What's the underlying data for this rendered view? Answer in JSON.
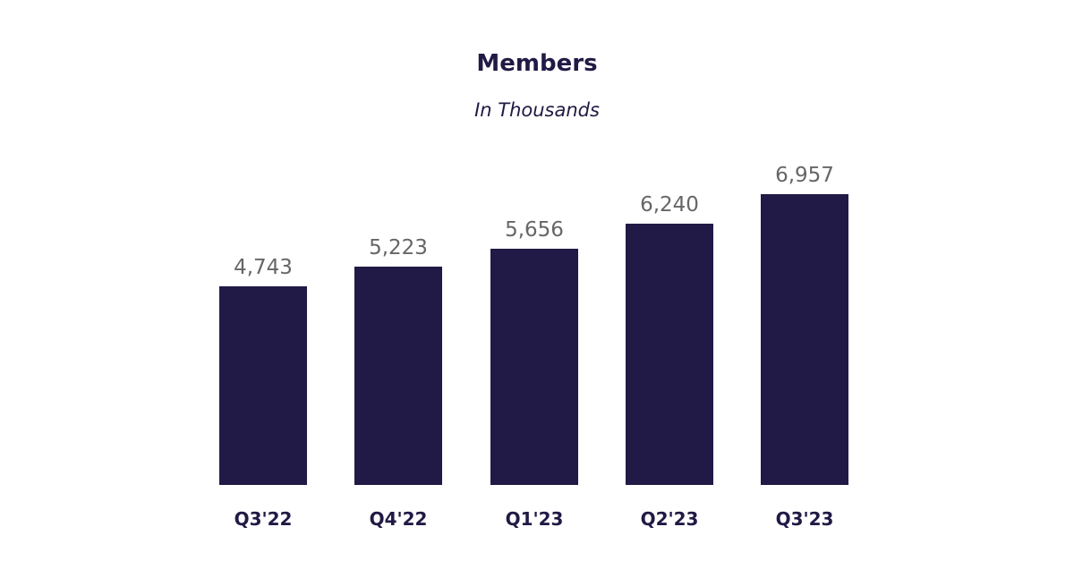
{
  "chart_data": {
    "type": "bar",
    "title": "Members",
    "subtitle": "In Thousands",
    "xlabel": "",
    "ylabel": "",
    "categories": [
      "Q3'22",
      "Q4'22",
      "Q1'23",
      "Q2'23",
      "Q3'23"
    ],
    "values": [
      4743,
      5223,
      5656,
      6240,
      6957
    ],
    "value_labels": [
      "4,743",
      "5,223",
      "5,656",
      "6,240",
      "6,957"
    ],
    "bar_color": "#211a46",
    "grid": false,
    "legend": null
  }
}
